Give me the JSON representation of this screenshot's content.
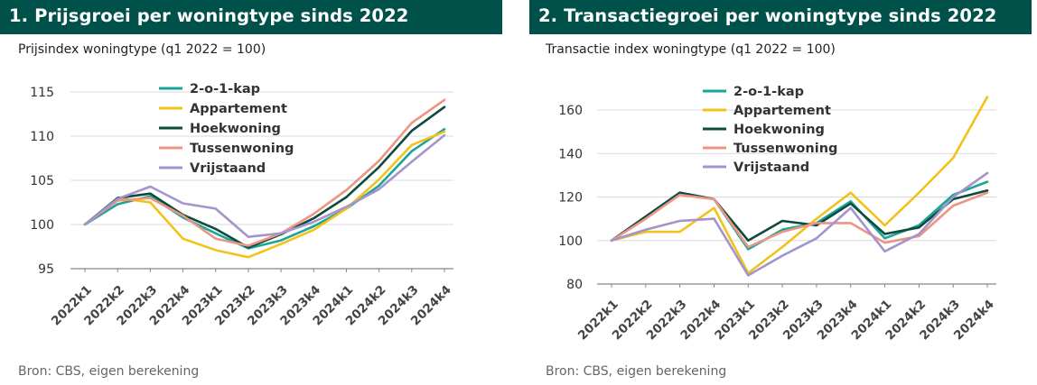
{
  "colors": {
    "header_bg": "#00514A",
    "2-o-1-kap": "#1BA596",
    "Appartement": "#F2C21B",
    "Hoekwoning": "#0D4B3F",
    "Tussenwoning": "#EE9482",
    "Vrijstaand": "#A494CC"
  },
  "chart_data": [
    {
      "type": "line",
      "title": "1. Prijsgroei per woningtype sinds 2022",
      "subtitle": "Prijsindex woningtype (q1 2022 = 100)",
      "source": "Bron: CBS, eigen berekening",
      "x": [
        "2022k1",
        "2022k2",
        "2022k3",
        "2022k4",
        "2023k1",
        "2023k2",
        "2023k3",
        "2023k4",
        "2024k1",
        "2024k2",
        "2024k3",
        "2024k4"
      ],
      "ylim": [
        95,
        115
      ],
      "yticks": [
        95,
        100,
        105,
        110,
        115
      ],
      "grid": true,
      "legend_position": "top-center",
      "series": [
        {
          "name": "2-o-1-kap",
          "values": [
            100,
            102.3,
            103.2,
            100.8,
            99.0,
            97.3,
            98.2,
            99.8,
            101.8,
            104.4,
            108.3,
            110.8
          ]
        },
        {
          "name": "Appartement",
          "values": [
            100,
            103.0,
            102.5,
            98.4,
            97.1,
            96.3,
            97.8,
            99.4,
            101.8,
            105.1,
            109.0,
            110.5
          ]
        },
        {
          "name": "Hoekwoning",
          "values": [
            100,
            103.0,
            103.5,
            101.1,
            99.5,
            97.4,
            98.9,
            100.7,
            103.1,
            106.5,
            110.6,
            113.3
          ]
        },
        {
          "name": "Tussenwoning",
          "values": [
            100,
            102.7,
            103.0,
            101.0,
            98.4,
            97.6,
            99.0,
            101.2,
            103.9,
            107.2,
            111.5,
            114.1
          ]
        },
        {
          "name": "Vrijstaand",
          "values": [
            100,
            102.9,
            104.3,
            102.4,
            101.8,
            98.6,
            99.0,
            100.3,
            102.0,
            104.0,
            107.1,
            110.1
          ]
        }
      ]
    },
    {
      "type": "line",
      "title": "2. Transactiegroei per woningtype sinds 2022",
      "subtitle": "Transactie index woningtype (q1 2022 = 100)",
      "source": "Bron: CBS, eigen berekening",
      "x": [
        "2022k1",
        "2022k2",
        "2022k3",
        "2022k4",
        "2023k1",
        "2023k2",
        "2023k3",
        "2023k4",
        "2024k1",
        "2024k2",
        "2024k3",
        "2024k4"
      ],
      "ylim": [
        80,
        170
      ],
      "yticks": [
        80,
        100,
        120,
        140,
        160
      ],
      "grid": true,
      "legend_position": "top-center",
      "series": [
        {
          "name": "2-o-1-kap",
          "values": [
            100,
            111,
            122,
            119,
            96,
            105,
            108,
            118,
            101,
            107,
            121,
            127
          ]
        },
        {
          "name": "Appartement",
          "values": [
            100,
            104,
            104,
            115,
            85,
            97,
            110,
            122,
            107,
            122,
            138,
            166
          ]
        },
        {
          "name": "Hoekwoning",
          "values": [
            100,
            111,
            122,
            119,
            100,
            109,
            107,
            117,
            103,
            106,
            119,
            123
          ]
        },
        {
          "name": "Tussenwoning",
          "values": [
            100,
            110,
            121,
            119,
            97,
            104,
            108,
            108,
            99,
            102,
            116,
            122
          ]
        },
        {
          "name": "Vrijstaand",
          "values": [
            100,
            105,
            109,
            110,
            84,
            93,
            101,
            115,
            95,
            103,
            120,
            131
          ]
        }
      ]
    }
  ]
}
